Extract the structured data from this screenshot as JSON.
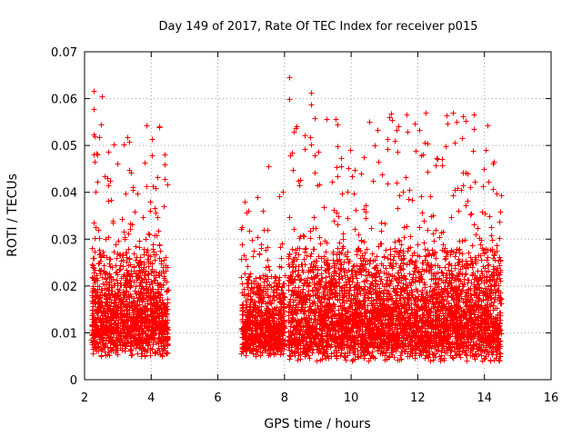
{
  "chart_data": {
    "type": "scatter",
    "title": "Day 149 of 2017, Rate Of TEC Index for receiver p015",
    "xlabel": "GPS time / hours",
    "ylabel": "ROTI / TECUs",
    "xlim": [
      2,
      16
    ],
    "ylim": [
      0,
      0.07
    ],
    "xticks": [
      "2",
      "4",
      "6",
      "8",
      "10",
      "12",
      "14",
      "16"
    ],
    "yticks": [
      "0",
      "0.01",
      "0.02",
      "0.03",
      "0.04",
      "0.05",
      "0.06",
      "0.07"
    ],
    "grid": true,
    "marker": "+",
    "color": "#ff0000",
    "data_segments": [
      {
        "x_start": 2.2,
        "x_end": 4.5,
        "typical_low": 0.005,
        "typical_high": 0.025,
        "max": 0.062
      },
      {
        "x_start": 6.7,
        "x_end": 8.0,
        "typical_low": 0.005,
        "typical_high": 0.02,
        "max": 0.046
      },
      {
        "x_start": 8.1,
        "x_end": 14.5,
        "typical_low": 0.004,
        "typical_high": 0.025,
        "max": 0.065
      }
    ],
    "notable_points": [
      {
        "x": 2.28,
        "y": 0.0617
      },
      {
        "x": 2.28,
        "y": 0.0577
      },
      {
        "x": 2.52,
        "y": 0.0605
      },
      {
        "x": 2.5,
        "y": 0.0545
      },
      {
        "x": 2.45,
        "y": 0.0517
      },
      {
        "x": 2.88,
        "y": 0.0503
      },
      {
        "x": 2.35,
        "y": 0.0483
      },
      {
        "x": 2.28,
        "y": 0.048
      },
      {
        "x": 2.7,
        "y": 0.0487
      },
      {
        "x": 8.15,
        "y": 0.0645
      },
      {
        "x": 8.15,
        "y": 0.06
      },
      {
        "x": 8.8,
        "y": 0.0612
      },
      {
        "x": 8.8,
        "y": 0.0588
      },
      {
        "x": 8.8,
        "y": 0.0503
      },
      {
        "x": 9.6,
        "y": 0.0545
      },
      {
        "x": 9.6,
        "y": 0.0498
      },
      {
        "x": 12.55,
        "y": 0.0473
      },
      {
        "x": 12.3,
        "y": 0.0445
      },
      {
        "x": 13.35,
        "y": 0.0443
      },
      {
        "x": 4.4,
        "y": 0.046
      },
      {
        "x": 4.4,
        "y": 0.0428
      },
      {
        "x": 3.85,
        "y": 0.0413
      },
      {
        "x": 7.5,
        "y": 0.0455
      },
      {
        "x": 8.25,
        "y": 0.0448
      },
      {
        "x": 10.65,
        "y": 0.0425
      },
      {
        "x": 11.1,
        "y": 0.0418
      },
      {
        "x": 13.2,
        "y": 0.041
      },
      {
        "x": 14.0,
        "y": 0.0355
      }
    ]
  }
}
